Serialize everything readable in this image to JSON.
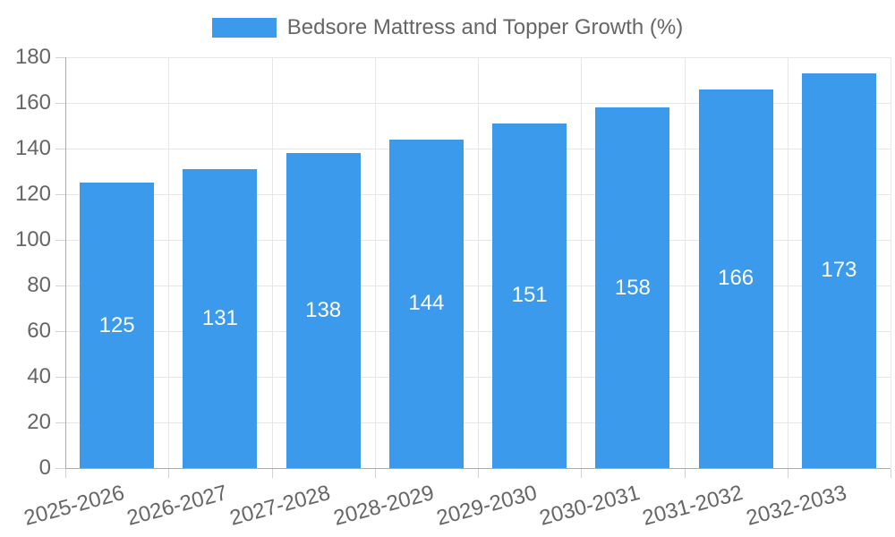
{
  "legend": {
    "position": "top",
    "items": [
      {
        "label": "Bedsore Mattress and Topper Growth (%)",
        "swatch_color": "#3b9aec"
      }
    ]
  },
  "chart_data": {
    "type": "bar",
    "title": "Bedsore Mattress and Topper Growth (%)",
    "legend_position": "top",
    "categories": [
      "2025-2026",
      "2026-2027",
      "2027-2028",
      "2028-2029",
      "2029-2030",
      "2030-2031",
      "2031-2032",
      "2032-2033"
    ],
    "series": [
      {
        "name": "Bedsore Mattress and Topper Growth (%)",
        "values": [
          125,
          131,
          138,
          144,
          151,
          158,
          166,
          173
        ]
      }
    ],
    "value_labels_shown": true,
    "xlabel": "",
    "ylabel": "",
    "ylim": [
      0,
      180
    ],
    "ytick_step": 20,
    "y_ticks": [
      0,
      20,
      40,
      60,
      80,
      100,
      120,
      140,
      160,
      180
    ],
    "grid": true,
    "colors": {
      "bar": "#3b9aec",
      "value_label": "#ffffff",
      "axis_text": "#666666",
      "grid": "#e6e6e6",
      "tick": "#d2d2d2",
      "axis_border": "#ababab",
      "background": "#ffffff"
    }
  }
}
